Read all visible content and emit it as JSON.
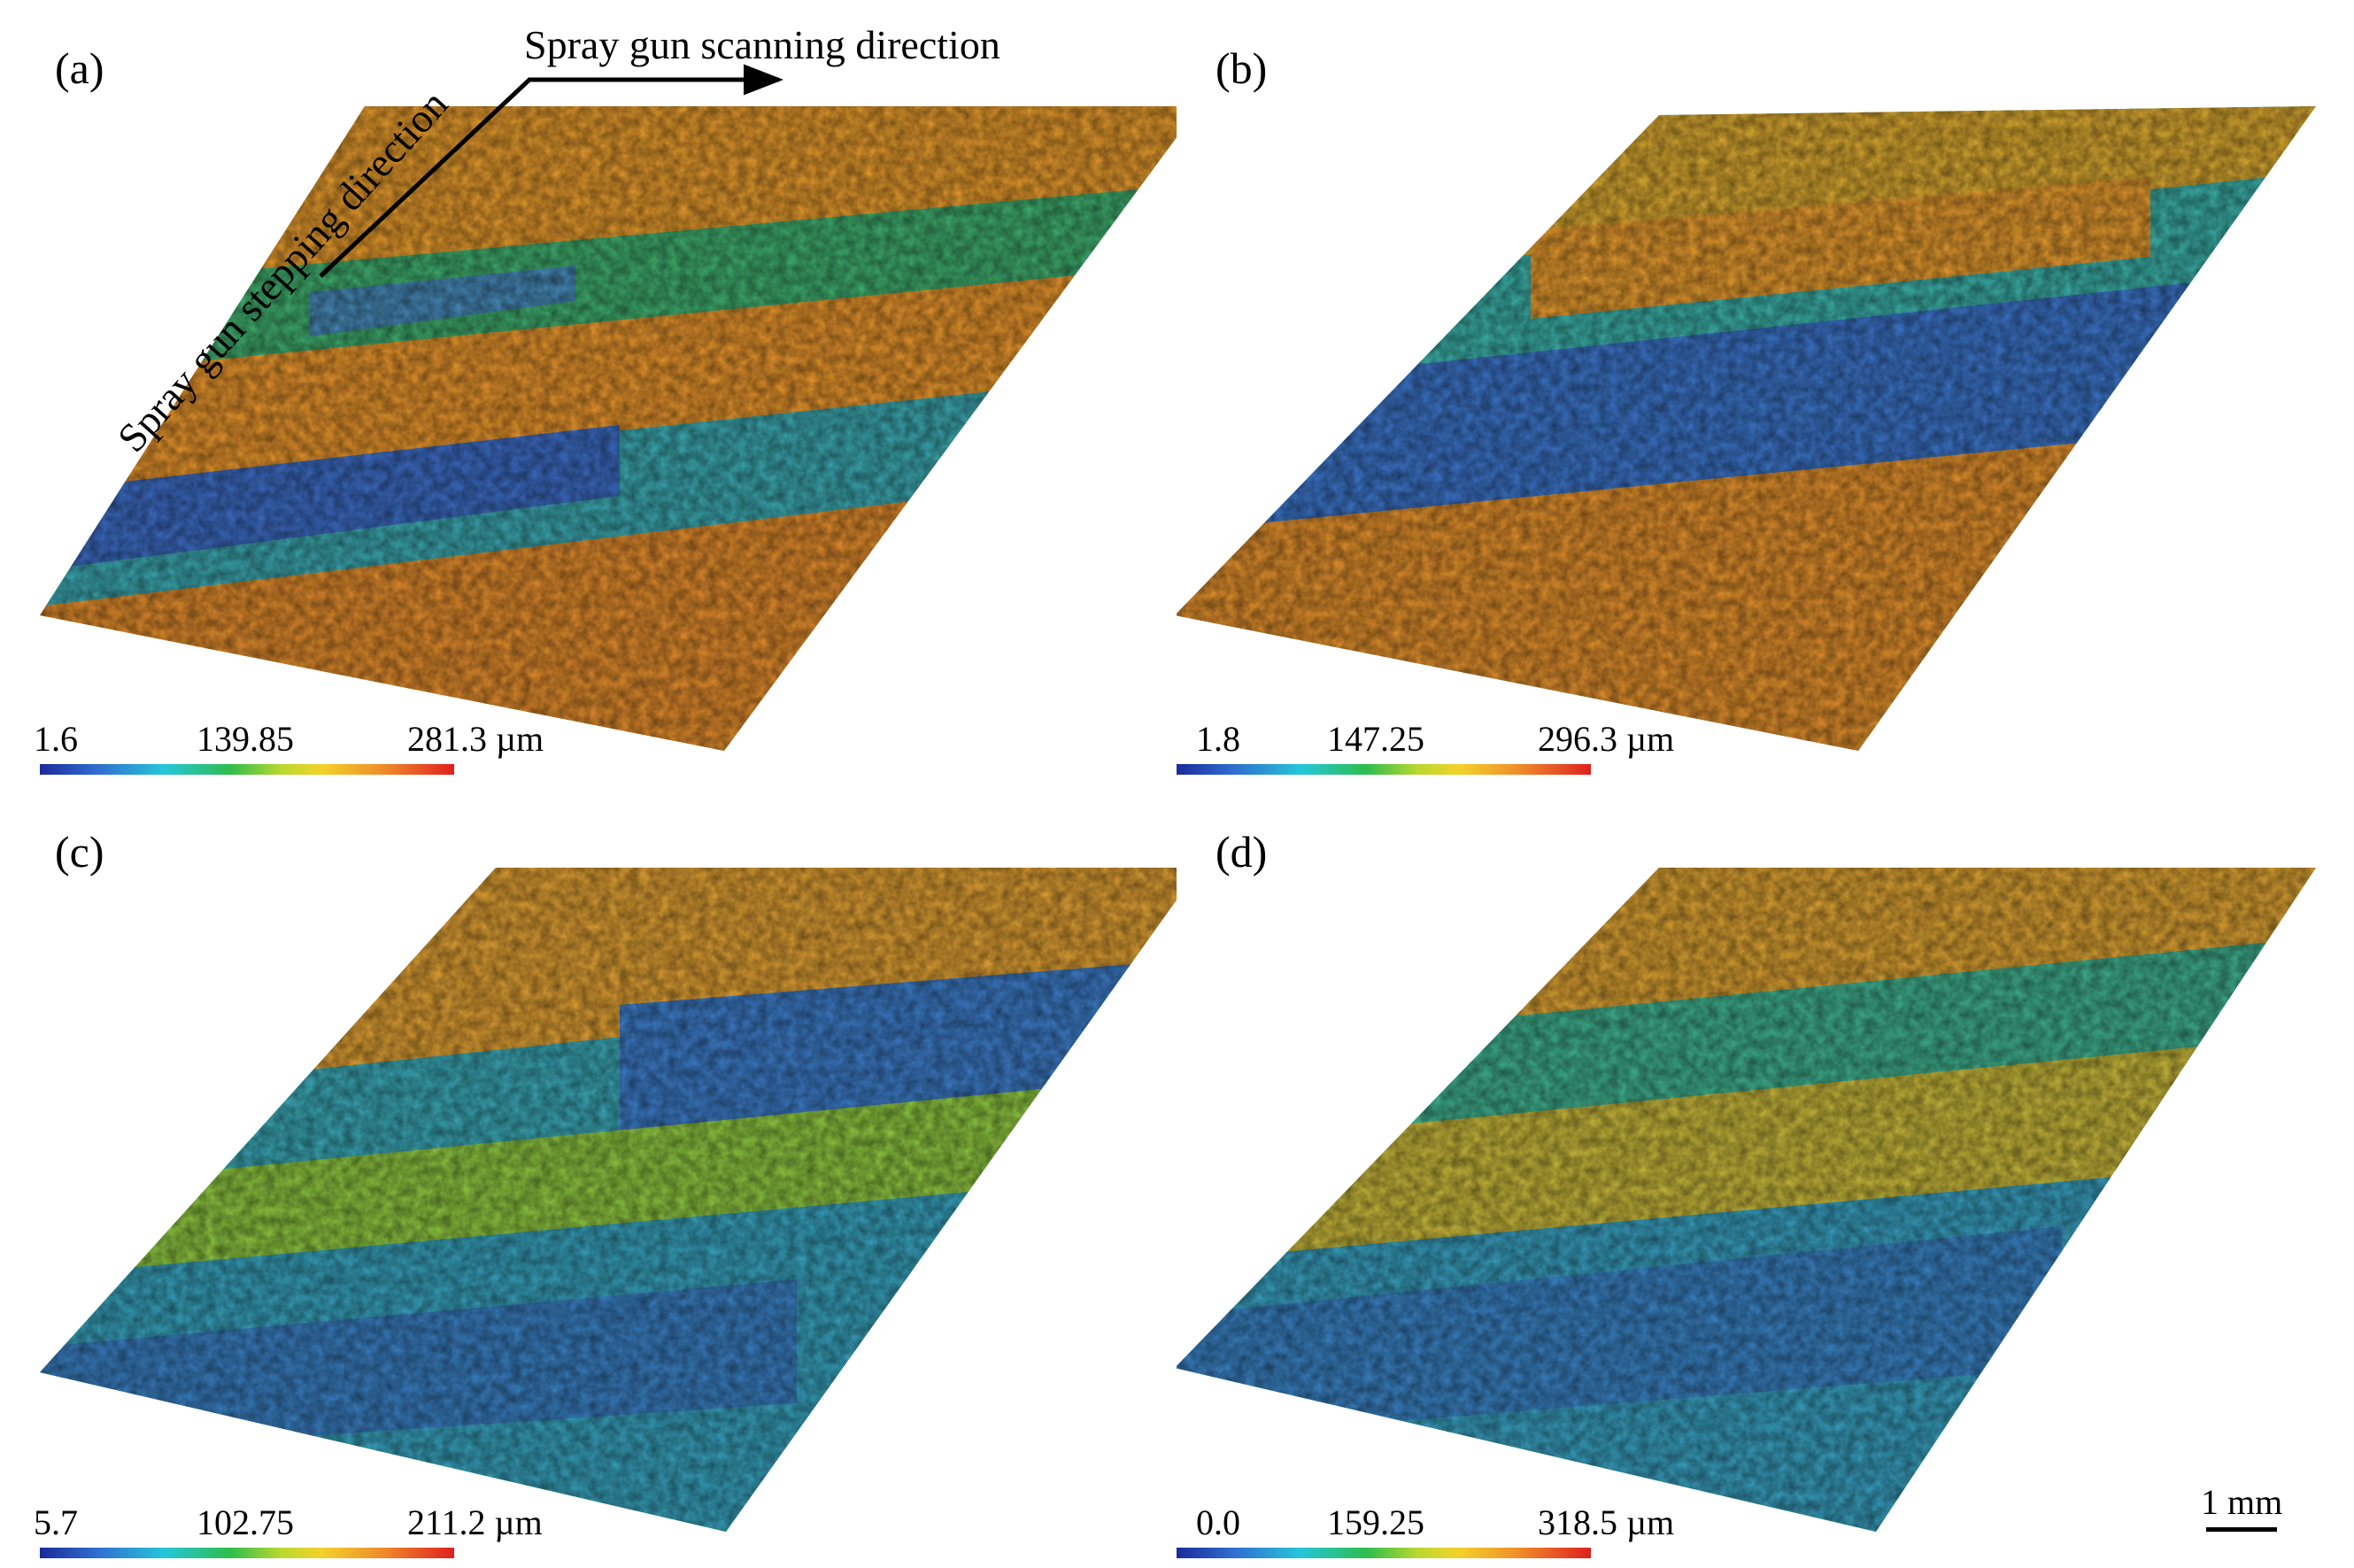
{
  "annotations": {
    "scanning": "Spray gun scanning direction",
    "stepping": "Spray gun stepping direction"
  },
  "panels": [
    {
      "label": "(a)",
      "scale": {
        "min": "1.6",
        "mid": "139.85",
        "max": "281.3 µm"
      }
    },
    {
      "label": "(b)",
      "scale": {
        "min": "1.8",
        "mid": "147.25",
        "max": "296.3 µm"
      }
    },
    {
      "label": "(c)",
      "scale": {
        "min": "5.7",
        "mid": "102.75",
        "max": "211.2 µm"
      }
    },
    {
      "label": "(d)",
      "scale": {
        "min": "0.0",
        "mid": "159.25",
        "max": "318.5 µm"
      }
    }
  ],
  "scalebar": {
    "label": "1 mm"
  },
  "colormap": [
    "#1b2a9a",
    "#2f6fd0",
    "#26c6da",
    "#2ebd4c",
    "#b8d830",
    "#f2d22a",
    "#f0902a",
    "#e02020"
  ]
}
